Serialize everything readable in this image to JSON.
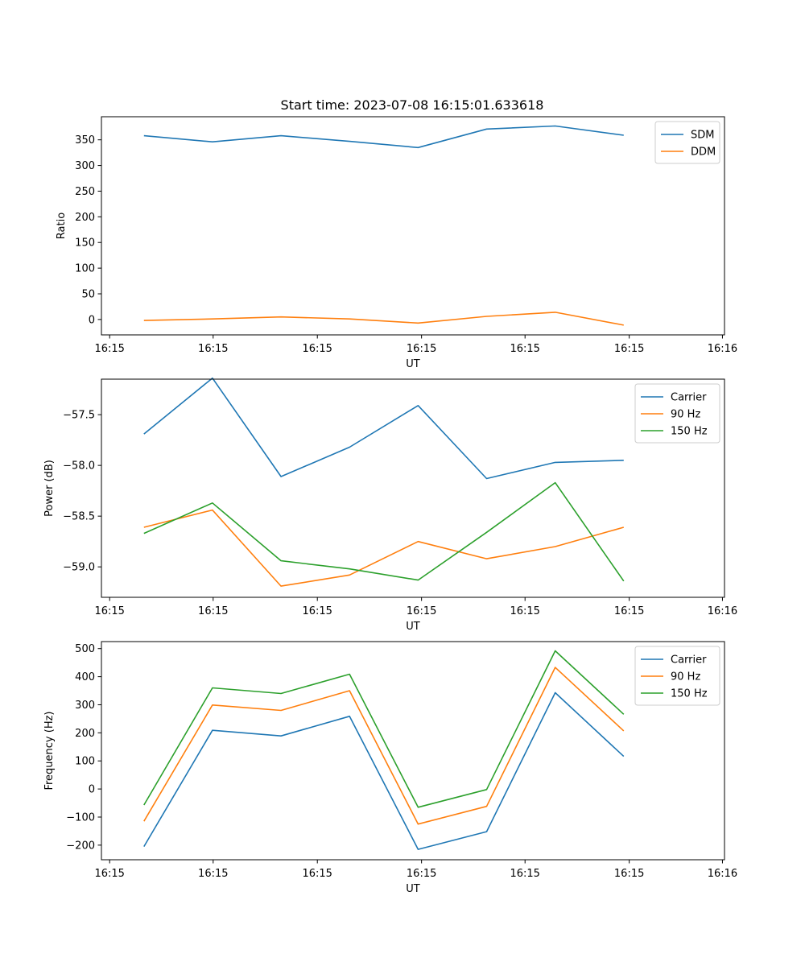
{
  "figure_title": "Start time: 2023-07-08 16:15:01.633618",
  "chart_data": [
    {
      "type": "line",
      "title": "Start time: 2023-07-08 16:15:01.633618",
      "xlabel": "UT",
      "ylabel": "Ratio",
      "xticks": [
        "16:15",
        "16:15",
        "16:15",
        "16:15",
        "16:15",
        "16:15",
        "16:16"
      ],
      "xlim": [
        -0.62,
        8.47
      ],
      "ylim": [
        -30,
        395
      ],
      "yticks": [
        0,
        50,
        100,
        150,
        200,
        250,
        300,
        350
      ],
      "ytick_labels": [
        "0",
        "50",
        "100",
        "150",
        "200",
        "250",
        "300",
        "350"
      ],
      "x": [
        0,
        1,
        2,
        3,
        4,
        5,
        6,
        7
      ],
      "legend_position": "upper-right",
      "series": [
        {
          "name": "SDM",
          "color": "#1f77b4",
          "values": [
            358,
            346,
            358,
            347,
            335,
            371,
            377,
            359
          ]
        },
        {
          "name": "DDM",
          "color": "#ff7f0e",
          "values": [
            -2,
            1,
            5,
            1,
            -7,
            6,
            14,
            -11
          ]
        }
      ]
    },
    {
      "type": "line",
      "xlabel": "UT",
      "ylabel": "Power (dB)",
      "xticks": [
        "16:15",
        "16:15",
        "16:15",
        "16:15",
        "16:15",
        "16:15",
        "16:16"
      ],
      "xlim": [
        -0.62,
        8.47
      ],
      "ylim": [
        -59.3,
        -57.15
      ],
      "yticks": [
        -59.0,
        -58.5,
        -58.0,
        -57.5
      ],
      "ytick_labels": [
        "−59.0",
        "−58.5",
        "−58.0",
        "−57.5"
      ],
      "x": [
        0,
        1,
        2,
        3,
        4,
        5,
        6,
        7
      ],
      "legend_position": "upper-right",
      "series": [
        {
          "name": "Carrier",
          "color": "#1f77b4",
          "values": [
            -57.69,
            -57.14,
            -58.11,
            -57.82,
            -57.41,
            -58.13,
            -57.97,
            -57.95
          ]
        },
        {
          "name": "90 Hz",
          "color": "#ff7f0e",
          "values": [
            -58.61,
            -58.44,
            -59.19,
            -59.08,
            -58.75,
            -58.92,
            -58.8,
            -58.61
          ]
        },
        {
          "name": "150 Hz",
          "color": "#2ca02c",
          "values": [
            -58.67,
            -58.37,
            -58.94,
            -59.02,
            -59.13,
            -58.66,
            -58.17,
            -59.14
          ]
        }
      ]
    },
    {
      "type": "line",
      "xlabel": "UT",
      "ylabel": "Frequency (Hz)",
      "xticks": [
        "16:15",
        "16:15",
        "16:15",
        "16:15",
        "16:15",
        "16:15",
        "16:16"
      ],
      "xlim": [
        -0.62,
        8.47
      ],
      "ylim": [
        -252,
        525
      ],
      "yticks": [
        -200,
        -100,
        0,
        100,
        200,
        300,
        400,
        500
      ],
      "ytick_labels": [
        "−200",
        "−100",
        "0",
        "100",
        "200",
        "300",
        "400",
        "500"
      ],
      "x": [
        0,
        1,
        2,
        3,
        4,
        5,
        6,
        7
      ],
      "legend_position": "upper-right",
      "series": [
        {
          "name": "Carrier",
          "color": "#1f77b4",
          "values": [
            -205,
            209,
            189,
            259,
            -215,
            -152,
            343,
            116
          ]
        },
        {
          "name": "90 Hz",
          "color": "#ff7f0e",
          "values": [
            -115,
            299,
            280,
            350,
            -125,
            -62,
            433,
            207
          ]
        },
        {
          "name": "150 Hz",
          "color": "#2ca02c",
          "values": [
            -57,
            360,
            340,
            409,
            -65,
            -2,
            492,
            266
          ]
        }
      ]
    }
  ]
}
